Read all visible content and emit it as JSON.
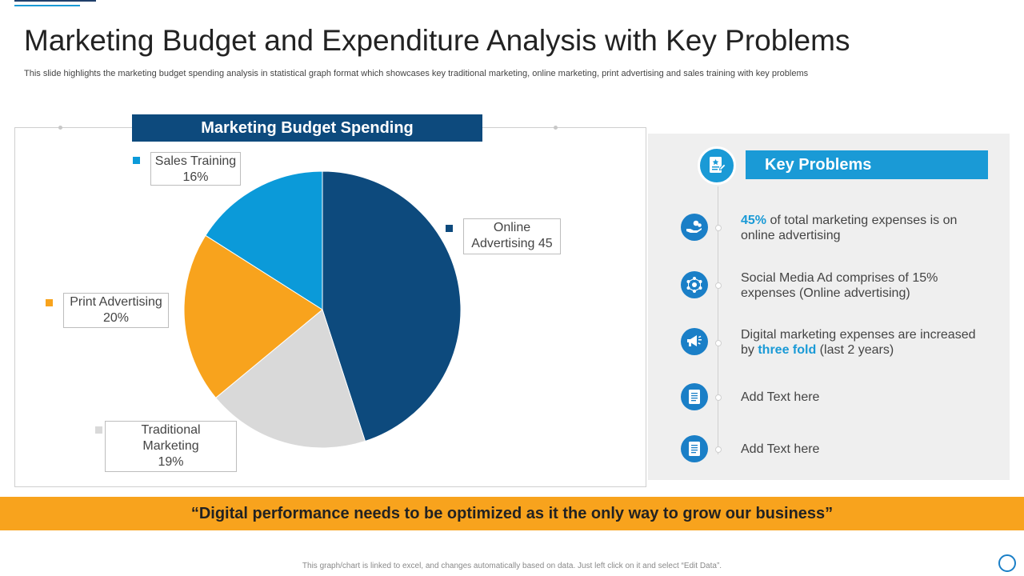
{
  "title": "Marketing Budget and Expenditure Analysis with Key Problems",
  "subtitle": "This slide highlights the marketing budget spending analysis in statistical graph format which showcases key traditional marketing, online marketing, print advertising and sales training with key problems",
  "chart_data": {
    "type": "pie",
    "title": "Marketing Budget Spending",
    "slices": [
      {
        "name": "Online Advertising",
        "label_line1": "Online",
        "label_line2": "Advertising 45",
        "value": 45,
        "color": "#0d4a7d"
      },
      {
        "name": "Traditional Marketing",
        "label_line1": "Traditional",
        "label_line2": "Marketing",
        "label_line3": "19%",
        "value": 19,
        "color": "#d9d9d9"
      },
      {
        "name": "Print Advertising",
        "label_line1": "Print Advertising",
        "label_line2": "20%",
        "value": 20,
        "color": "#f8a31d"
      },
      {
        "name": "Sales Training",
        "label_line1": "Sales Training",
        "label_line2": "16%",
        "value": 16,
        "color": "#0b9ad9"
      }
    ]
  },
  "key_problems": {
    "heading": "Key Problems",
    "items": [
      {
        "icon": "hand-money-icon",
        "highlight": "45%",
        "text": " of total marketing expenses is on online advertising"
      },
      {
        "icon": "network-icon",
        "text": "Social Media Ad comprises of 15% expenses (Online advertising)"
      },
      {
        "icon": "megaphone-icon",
        "pre": "Digital marketing expenses are increased by ",
        "highlight": "three fold",
        "post": " (last 2 years)"
      },
      {
        "icon": "document-icon",
        "text": "Add Text here"
      },
      {
        "icon": "document-icon",
        "text": "Add Text here"
      }
    ]
  },
  "banner": "“Digital performance needs to be optimized as it the only way to grow our business”",
  "footer_note": "This graph/chart is linked to excel, and changes automatically based on data. Just left click on it and select “Edit Data”."
}
